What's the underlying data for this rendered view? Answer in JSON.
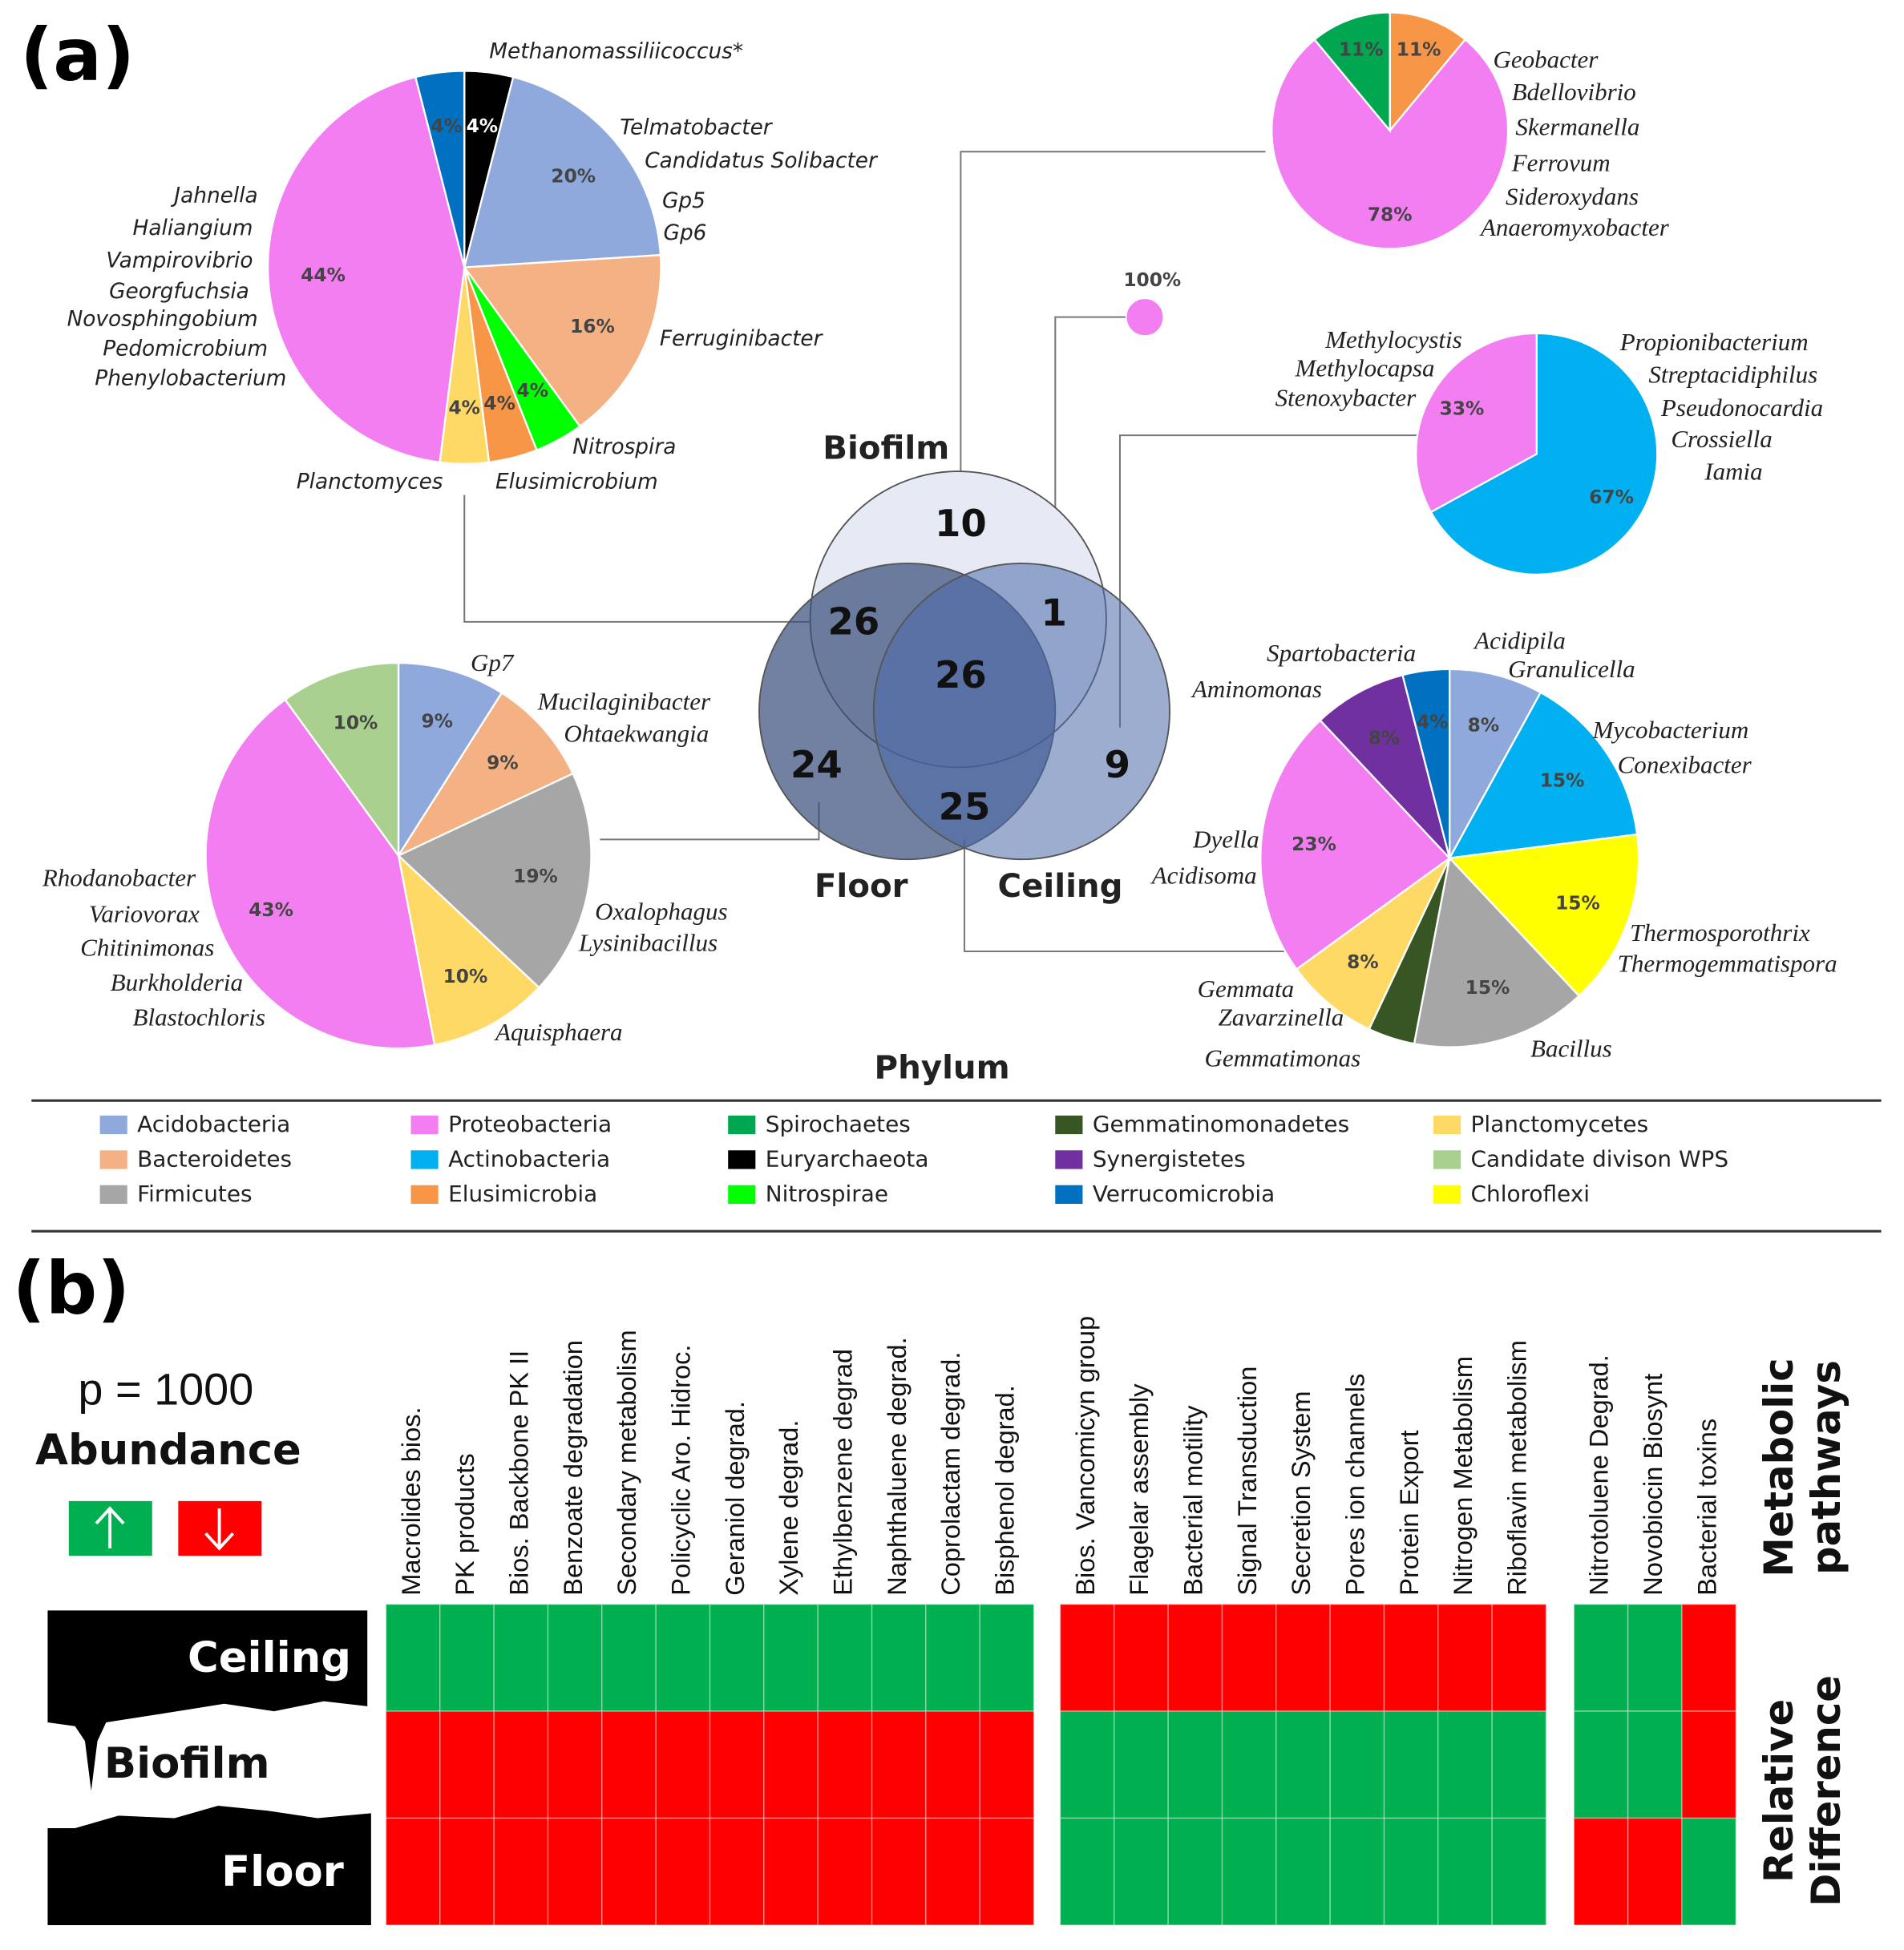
{
  "panel_labels": [
    "(a)",
    "(b)"
  ],
  "phylum_legend": {
    "title": "Phylum",
    "items": [
      {
        "name": "Acidobacteria",
        "color": "#8fa9dc"
      },
      {
        "name": "Bacteroidetes",
        "color": "#f4b183"
      },
      {
        "name": "Firmicutes",
        "color": "#a6a6a6"
      },
      {
        "name": "Proteobacteria",
        "color": "#f27ef2"
      },
      {
        "name": "Actinobacteria",
        "color": "#00b0f0"
      },
      {
        "name": "Elusimicrobia",
        "color": "#f79646"
      },
      {
        "name": "Spirochaetes",
        "color": "#00a650"
      },
      {
        "name": "Euryarchaeota",
        "color": "#000000"
      },
      {
        "name": "Nitrospirae",
        "color": "#00ff00"
      },
      {
        "name": "Gemmatinomonadetes",
        "color": "#375623"
      },
      {
        "name": "Synergistetes",
        "color": "#7030a0"
      },
      {
        "name": "Verrucomicrobia",
        "color": "#0070c0"
      },
      {
        "name": "Planctomycetes",
        "color": "#ffd966"
      },
      {
        "name": "Candidate divison WPS",
        "color": "#a9d08e"
      },
      {
        "name": "Chloroflexi",
        "color": "#ffff00"
      }
    ]
  },
  "chart_data": [
    {
      "type": "pie",
      "categories": [
        "Euryarchaeota",
        "Acidobacteria",
        "Bacteroidetes",
        "Nitrospirae",
        "Elusimicrobia",
        "Planctomycetes",
        "Proteobacteria",
        "Verrucomicrobia"
      ],
      "values": [
        4,
        20,
        16,
        4,
        4,
        4,
        44,
        4
      ],
      "value_labels": [
        "4%",
        "20%",
        "16%",
        "4%",
        "4%",
        "4%",
        "44%",
        "4%"
      ],
      "annotations": [
        "Methanomassiliicoccus*",
        "Telmatobacter",
        "Candidatus Solibacter",
        "Gp5",
        "Gp6",
        "Ferruginibacter",
        "Nitrospira",
        "Elusimicrobium",
        "Planctomyces",
        "Jahnella",
        "Haliangium",
        "Vampirovibrio",
        "Georgfuchsia",
        "Novosphingobium",
        "Pedomicrobium",
        "Phenylobacterium"
      ]
    },
    {
      "type": "pie",
      "categories": [
        "Elusimicrobia",
        "Proteobacteria",
        "Spirochaetes"
      ],
      "values": [
        11,
        78,
        11
      ],
      "value_labels": [
        "11%",
        "78%",
        "11%"
      ],
      "annotations": [
        "Geobacter",
        "Bdellovibrio",
        "Skermanella",
        "Ferrovum",
        "Sideroxydans",
        "Anaeromyxobacter"
      ]
    },
    {
      "type": "pie",
      "categories": [
        "Actinobacteria",
        "Proteobacteria"
      ],
      "values": [
        67,
        33
      ],
      "value_labels": [
        "67%",
        "33%"
      ],
      "annotations": [
        "Methylocystis",
        "Methylocapsa",
        "Stenoxybacter",
        "Propionibacterium",
        "Streptacidiphilus",
        "Pseudonocardia",
        "Crossiella",
        "Iamia"
      ]
    },
    {
      "type": "pie",
      "categories": [
        "Acidobacteria",
        "Bacteroidetes",
        "Firmicutes",
        "Planctomycetes",
        "Proteobacteria",
        "Candidate divison WPS"
      ],
      "values": [
        9,
        9,
        19,
        10,
        43,
        10
      ],
      "value_labels": [
        "9%",
        "9%",
        "19%",
        "10%",
        "43%",
        "10%"
      ],
      "annotations": [
        "Gp7",
        "Mucilaginibacter",
        "Ohtaekwangia",
        "Oxalophagus",
        "Lysinibacillus",
        "Aquisphaera",
        "Rhodanobacter",
        "Variovorax",
        "Chitinimonas",
        "Burkholderia",
        "Blastochloris"
      ]
    },
    {
      "type": "pie",
      "categories": [
        "Acidobacteria",
        "Actinobacteria",
        "Chloroflexi",
        "Firmicutes",
        "Gemmatinomonadetes",
        "Planctomycetes",
        "Proteobacteria",
        "Synergistetes",
        "Verrucomicrobia"
      ],
      "values": [
        8,
        15,
        15,
        15,
        4,
        8,
        23,
        8,
        4
      ],
      "value_labels": [
        "8%",
        "15%",
        "15%",
        "15%",
        null,
        "8%",
        "23%",
        "8%",
        "4%"
      ],
      "annotations": [
        "Spartobacteria",
        "Acidipila",
        "Granulicella",
        "Aminomonas",
        "Mycobacterium",
        "Conexibacter",
        "Dyella",
        "Acidisoma",
        "Thermosporothrix",
        "Thermogemmatispora",
        "Gemmata",
        "Zavarzinella",
        "Bacillus",
        "Gemmatimonas"
      ]
    },
    {
      "type": "pie",
      "categories": [
        "Proteobacteria"
      ],
      "values": [
        100
      ],
      "value_labels": [
        "100%"
      ]
    },
    {
      "type": "venn",
      "sets": [
        "Biofilm",
        "Floor",
        "Ceiling"
      ],
      "values": [
        10,
        26,
        1,
        26,
        24,
        9,
        25
      ]
    },
    {
      "type": "heatmap",
      "legend_title": "Abundance",
      "legend_scale": "p = 1000",
      "color_up": "#00b050",
      "color_down": "#ff0000",
      "columns": [
        "Macrolides bios.",
        "PK products",
        "Bios. Backbone PK II",
        "Benzoate degradation",
        "Secondary metabolism",
        "Policyclic Aro. Hidroc.",
        "Geraniol degrad.",
        "Xylene degrad.",
        "Ethylbenzene degrad",
        "Naphthaluene  degrad.",
        "Coprolactam  degrad.",
        "Bisphenol  degrad.",
        "Bios. Vancomicyn group",
        "Flagelar assembly",
        "Bacterial motility",
        "Signal Transduction",
        "Secretion System",
        "Pores ion channels",
        "Protein Export",
        "Nitrogen Metabolism",
        "Riboflavin metabolism",
        "Nitrotoluene Degrad.",
        "Novobiocin Biosynt",
        "Bacterial toxins"
      ],
      "rows": [
        "Ceiling",
        "Biofilm",
        "Floor"
      ],
      "values": [
        [
          1,
          1,
          1,
          1,
          1,
          1,
          1,
          1,
          1,
          1,
          1,
          1,
          -1,
          -1,
          -1,
          -1,
          -1,
          -1,
          -1,
          -1,
          -1,
          1,
          1,
          -1
        ],
        [
          -1,
          -1,
          -1,
          -1,
          -1,
          -1,
          -1,
          -1,
          -1,
          -1,
          -1,
          -1,
          1,
          1,
          1,
          1,
          1,
          1,
          1,
          1,
          1,
          1,
          1,
          -1
        ],
        [
          -1,
          -1,
          -1,
          -1,
          -1,
          -1,
          -1,
          -1,
          -1,
          -1,
          -1,
          -1,
          1,
          1,
          1,
          1,
          1,
          1,
          1,
          1,
          1,
          -1,
          -1,
          1
        ]
      ],
      "xlabel": [
        "Metabolic",
        "pathways"
      ],
      "ylabel": [
        "Relative",
        "Difference"
      ]
    }
  ]
}
